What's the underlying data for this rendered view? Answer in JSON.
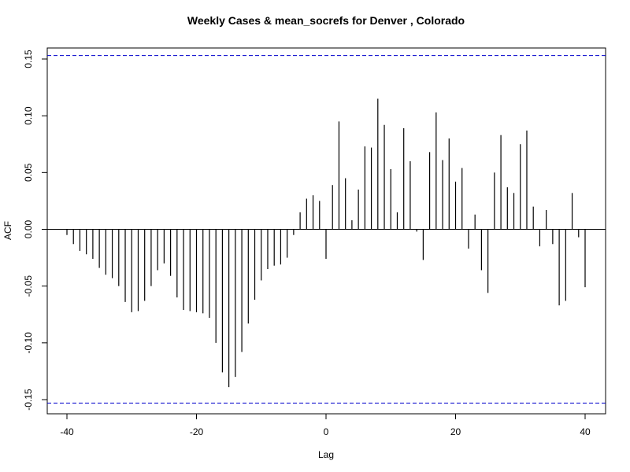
{
  "chart_data": {
    "type": "bar",
    "title": "Weekly Cases & mean_socrefs for Denver , Colorado",
    "xlabel": "Lag",
    "ylabel": "ACF",
    "xlim": [
      -40,
      40
    ],
    "ylim": [
      -0.165,
      0.165
    ],
    "x_ticks": [
      -40,
      -20,
      0,
      20,
      40
    ],
    "y_ticks": [
      -0.15,
      -0.1,
      -0.05,
      0.0,
      0.05,
      0.1,
      0.15
    ],
    "y_tick_labels": [
      "-0.15",
      "-0.10",
      "-0.05",
      "0.00",
      "0.05",
      "0.10",
      "0.15"
    ],
    "x_tick_labels": [
      "-40",
      "-20",
      "0",
      "20",
      "40"
    ],
    "confidence_bound": 0.153,
    "confidence_color": "#0000cc",
    "bar_color": "#000000",
    "grid": false,
    "x": [
      -40,
      -39,
      -38,
      -37,
      -36,
      -35,
      -34,
      -33,
      -32,
      -31,
      -30,
      -29,
      -28,
      -27,
      -26,
      -25,
      -24,
      -23,
      -22,
      -21,
      -20,
      -19,
      -18,
      -17,
      -16,
      -15,
      -14,
      -13,
      -12,
      -11,
      -10,
      -9,
      -8,
      -7,
      -6,
      -5,
      -4,
      -3,
      -2,
      -1,
      0,
      1,
      2,
      3,
      4,
      5,
      6,
      7,
      8,
      9,
      10,
      11,
      12,
      13,
      14,
      15,
      16,
      17,
      18,
      19,
      20,
      21,
      22,
      23,
      24,
      25,
      26,
      27,
      28,
      29,
      30,
      31,
      32,
      33,
      34,
      35,
      36,
      37,
      38,
      39,
      40
    ],
    "values": [
      -0.005,
      -0.013,
      -0.019,
      -0.022,
      -0.026,
      -0.034,
      -0.04,
      -0.043,
      -0.05,
      -0.064,
      -0.073,
      -0.072,
      -0.063,
      -0.05,
      -0.036,
      -0.03,
      -0.041,
      -0.06,
      -0.071,
      -0.072,
      -0.073,
      -0.074,
      -0.078,
      -0.1,
      -0.126,
      -0.139,
      -0.13,
      -0.108,
      -0.083,
      -0.062,
      -0.045,
      -0.035,
      -0.032,
      -0.031,
      -0.025,
      -0.005,
      0.015,
      0.027,
      0.03,
      0.025,
      -0.026,
      0.039,
      0.095,
      0.045,
      0.008,
      0.035,
      0.073,
      0.072,
      0.115,
      0.092,
      0.053,
      0.015,
      0.089,
      0.06,
      -0.002,
      -0.027,
      0.068,
      0.103,
      0.061,
      0.08,
      0.042,
      0.054,
      -0.017,
      0.013,
      -0.036,
      -0.056,
      0.05,
      0.083,
      0.037,
      0.032,
      0.075,
      0.087,
      0.02,
      -0.015,
      0.017,
      -0.013,
      -0.067,
      -0.063,
      0.032,
      -0.007,
      -0.051
    ]
  }
}
